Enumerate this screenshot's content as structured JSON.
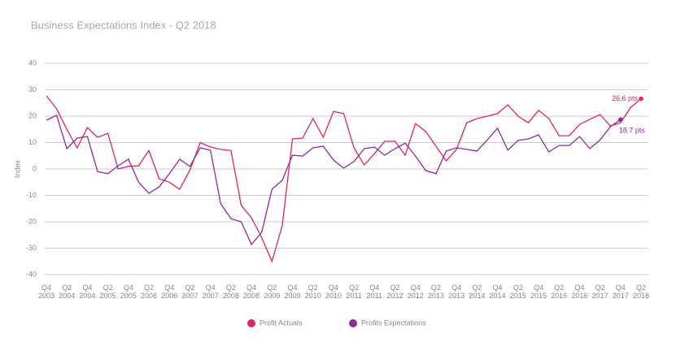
{
  "chart_data": {
    "type": "line",
    "title": "Business Expectations Index - Q2 2018",
    "y_label": "Index",
    "categories": [
      "Q4 2003",
      null,
      "Q2 2004",
      null,
      "Q4 2004",
      null,
      "Q2 2005",
      null,
      "Q4 2005",
      null,
      "Q2 2006",
      null,
      "Q4 2006",
      null,
      "Q2 2007",
      null,
      "Q4 2007",
      null,
      "Q2 2008",
      null,
      "Q4 2008",
      null,
      "Q2 2009",
      null,
      "Q4 2009",
      null,
      "Q2 2010",
      null,
      "Q4 2010",
      null,
      "Q2 2011",
      null,
      "Q4 2011",
      null,
      "Q2 2012",
      null,
      "Q4 2012",
      null,
      "Q2 2013",
      null,
      "Q4 2013",
      null,
      "Q2 2014",
      null,
      "Q4 2014",
      null,
      "Q2 2015",
      null,
      "Q4 2015",
      null,
      "Q2 2016",
      null,
      "Q4 2016",
      null,
      "Q2 2017",
      null,
      "Q4 2017",
      null,
      "Q2 2018"
    ],
    "series": [
      {
        "name": "Profit Actuals",
        "color": "#e0246a",
        "values": [
          27.7,
          22.8,
          15,
          8,
          15.7,
          12,
          13.5,
          0,
          1,
          1.2,
          7,
          -3.7,
          -5,
          -7.7,
          -0.5,
          10,
          8.3,
          7.4,
          7,
          -13.8,
          -18.5,
          -26,
          -35,
          -21.5,
          11.4,
          11.7,
          19.1,
          12,
          21.8,
          21,
          8,
          1.5,
          5.8,
          10.5,
          10.5,
          5.2,
          17.2,
          14.2,
          8.6,
          3.1,
          7.4,
          17.5,
          19.1,
          20,
          21,
          24.3,
          20,
          17.5,
          22.2,
          19.1,
          12.6,
          12.6,
          16.9,
          18.8,
          20.6,
          16.3,
          17.5,
          23.4,
          26.6
        ],
        "value_labels": [
          null,
          null,
          null,
          null,
          null,
          null,
          null,
          null,
          null,
          null,
          null,
          null,
          null,
          null,
          null,
          null,
          null,
          null,
          null,
          null,
          null,
          null,
          null,
          null,
          null,
          null,
          null,
          null,
          null,
          null,
          null,
          null,
          null,
          null,
          null,
          null,
          null,
          null,
          null,
          null,
          null,
          null,
          null,
          null,
          null,
          null,
          null,
          null,
          null,
          null,
          null,
          null,
          null,
          null,
          null,
          null,
          null,
          null,
          "26.6 pts"
        ]
      },
      {
        "name": "Profits Expectations",
        "color": "#8e2a9a",
        "values": [
          18.5,
          20.3,
          7.7,
          11.7,
          12.3,
          -1,
          -1.8,
          1.2,
          3.7,
          -5,
          -9.2,
          -6.8,
          -1.8,
          3.7,
          1,
          8,
          7.1,
          -13.2,
          -18.8,
          -20,
          -28.6,
          -24,
          -7.7,
          -4.3,
          5.2,
          4.9,
          8,
          8.6,
          3.4,
          0.3,
          2.8,
          7.7,
          8.3,
          5.2,
          7.7,
          9.8,
          4.9,
          -0.6,
          -1.8,
          6.8,
          8,
          7.4,
          6.8,
          11,
          15.4,
          7.1,
          10.8,
          11.4,
          12.9,
          6.5,
          8.9,
          8.9,
          12.3,
          7.7,
          11,
          16,
          18.7,
          null,
          null
        ],
        "value_labels": [
          null,
          null,
          null,
          null,
          null,
          null,
          null,
          null,
          null,
          null,
          null,
          null,
          null,
          null,
          null,
          null,
          null,
          null,
          null,
          null,
          null,
          null,
          null,
          null,
          null,
          null,
          null,
          null,
          null,
          null,
          null,
          null,
          null,
          null,
          null,
          null,
          null,
          null,
          null,
          null,
          null,
          null,
          null,
          null,
          null,
          null,
          null,
          null,
          null,
          null,
          null,
          null,
          null,
          null,
          null,
          null,
          "18.7 pts",
          null,
          null
        ]
      }
    ],
    "ylim": [
      -40,
      40
    ],
    "yticks": [
      -40,
      -30,
      -20,
      -10,
      0,
      10,
      20,
      30,
      40
    ],
    "grid": true,
    "legend": "bottom"
  }
}
